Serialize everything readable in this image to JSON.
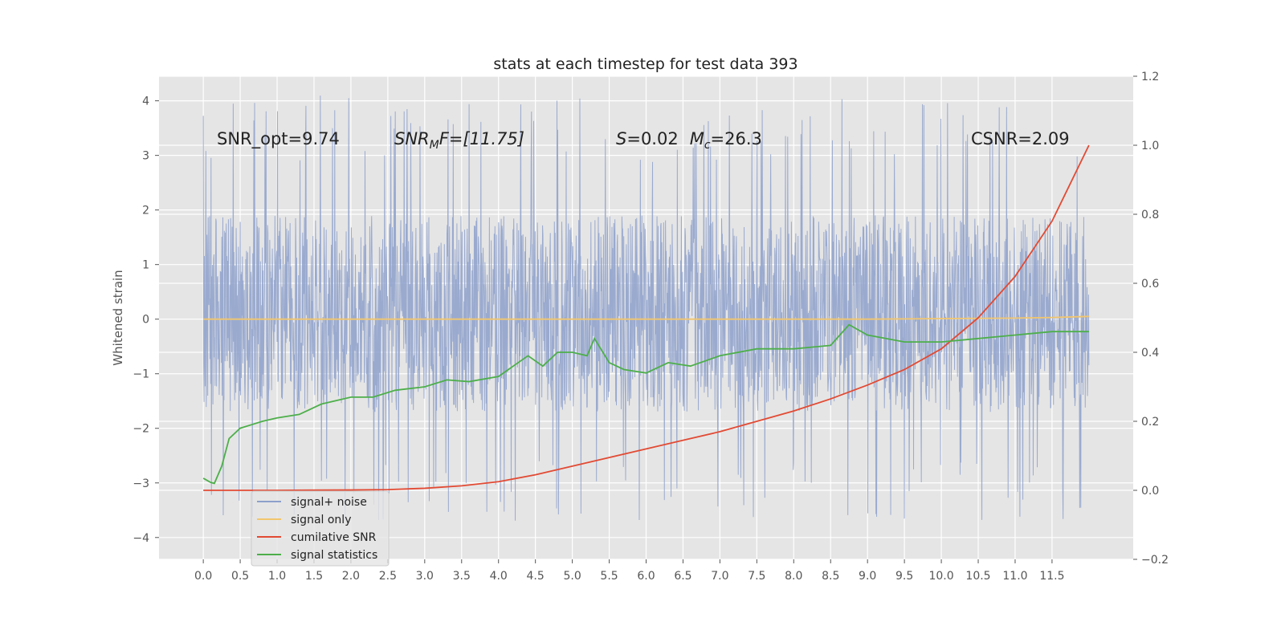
{
  "chart_data": {
    "type": "line",
    "title": "stats at each timestep for test data 393",
    "ylabel": "Whitened strain",
    "xlim": [
      -0.6,
      12.6
    ],
    "ylim": [
      -4.4,
      4.45
    ],
    "y2lim": [
      -0.2,
      1.2
    ],
    "x_ticks": [
      "0.0",
      "0.5",
      "1.0",
      "1.5",
      "2.0",
      "2.5",
      "3.0",
      "3.5",
      "4.0",
      "4.5",
      "5.0",
      "5.5",
      "6.0",
      "6.5",
      "7.0",
      "7.5",
      "8.0",
      "8.5",
      "9.0",
      "9.5",
      "10.0",
      "10.5",
      "11.0",
      "11.5"
    ],
    "y_ticks": [
      "4",
      "3",
      "2",
      "1",
      "0",
      "−1",
      "−2",
      "−3",
      "−4"
    ],
    "y2_ticks": [
      "1.2",
      "1.0",
      "0.8",
      "0.6",
      "0.4",
      "0.2",
      "0.0",
      "−0.2"
    ],
    "grid": true,
    "legend_position": "lower-left",
    "annotations": {
      "snr_opt": "SNR_opt=9.74",
      "snr_mf_base": "SNR",
      "snr_mf_sub": "M",
      "snr_mf_tail": "F=[11.75]",
      "s_var": "S",
      "s_val": "=0.02",
      "mc_var": "M",
      "mc_sub": "c",
      "mc_val": "=26.3",
      "csnr": "CSNR=2.09"
    },
    "series": [
      {
        "name": "signal+ noise",
        "axis": "left",
        "color": "#8da0cb",
        "envelope_x": [
          0,
          12
        ],
        "typical_range": [
          -1.7,
          1.9
        ],
        "peak_range": [
          -3.7,
          4.1
        ]
      },
      {
        "name": "signal only",
        "axis": "left",
        "color": "#f2c66d",
        "x": [
          0,
          2,
          4,
          6,
          8,
          9,
          10,
          11,
          11.5,
          12
        ],
        "y": [
          0,
          0,
          0,
          0,
          0,
          0,
          0.01,
          0.02,
          0.03,
          0.05
        ]
      },
      {
        "name": "cumilative SNR",
        "axis": "right",
        "color": "#e24a33",
        "x": [
          0,
          1,
          2,
          2.5,
          3,
          3.5,
          4,
          4.5,
          5,
          5.5,
          6,
          6.5,
          7,
          7.5,
          8,
          8.5,
          9,
          9.5,
          10,
          10.5,
          11,
          11.5,
          12
        ],
        "y": [
          0.0,
          0.0,
          0.001,
          0.002,
          0.006,
          0.013,
          0.025,
          0.045,
          0.07,
          0.095,
          0.12,
          0.145,
          0.17,
          0.2,
          0.23,
          0.265,
          0.305,
          0.35,
          0.41,
          0.5,
          0.62,
          0.78,
          1.0
        ]
      },
      {
        "name": "signal statistics",
        "axis": "right",
        "color": "#4daf4a",
        "x": [
          0,
          0.1,
          0.15,
          0.25,
          0.35,
          0.5,
          0.65,
          0.8,
          1.0,
          1.3,
          1.6,
          2.0,
          2.3,
          2.6,
          3.0,
          3.3,
          3.6,
          4.0,
          4.2,
          4.4,
          4.6,
          4.8,
          5.0,
          5.2,
          5.3,
          5.5,
          5.7,
          6.0,
          6.3,
          6.6,
          7.0,
          7.5,
          8.0,
          8.5,
          8.75,
          9.0,
          9.5,
          10.0,
          10.5,
          11.0,
          11.5,
          12.0
        ],
        "y": [
          0.035,
          0.023,
          0.02,
          0.07,
          0.15,
          0.18,
          0.19,
          0.2,
          0.21,
          0.22,
          0.25,
          0.27,
          0.27,
          0.29,
          0.3,
          0.32,
          0.315,
          0.33,
          0.36,
          0.39,
          0.36,
          0.4,
          0.4,
          0.39,
          0.44,
          0.37,
          0.35,
          0.34,
          0.37,
          0.36,
          0.39,
          0.41,
          0.41,
          0.42,
          0.48,
          0.45,
          0.43,
          0.43,
          0.44,
          0.45,
          0.46,
          0.46
        ]
      }
    ]
  }
}
